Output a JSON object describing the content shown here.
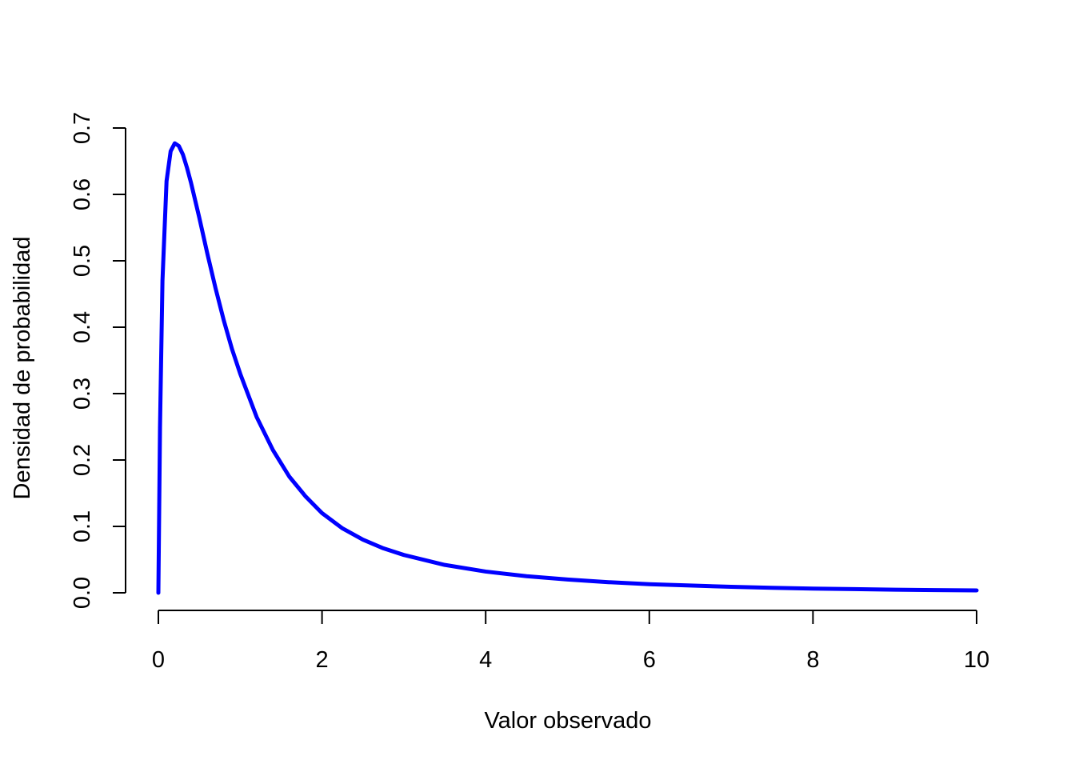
{
  "chart_data": {
    "type": "line",
    "title": "",
    "xlabel": "Valor observado",
    "ylabel": "Densidad de probabilidad",
    "xlim": [
      0,
      10
    ],
    "ylim": [
      0,
      0.7
    ],
    "x_ticks": [
      0,
      2,
      4,
      6,
      8,
      10
    ],
    "x_tick_labels": [
      "0",
      "2",
      "4",
      "6",
      "8",
      "10"
    ],
    "y_ticks": [
      0,
      0.1,
      0.2,
      0.3,
      0.4,
      0.5,
      0.6,
      0.7
    ],
    "y_tick_labels": [
      "0.0",
      "0.1",
      "0.2",
      "0.3",
      "0.4",
      "0.5",
      "0.6",
      "0.7"
    ],
    "grid": false,
    "legend": "none",
    "series": [
      {
        "color": "#0000ff",
        "x": [
          0,
          0.02,
          0.05,
          0.1,
          0.15,
          0.2,
          0.25,
          0.3,
          0.35,
          0.4,
          0.5,
          0.6,
          0.7,
          0.8,
          0.9,
          1.0,
          1.2,
          1.4,
          1.6,
          1.8,
          2.0,
          2.25,
          2.5,
          2.75,
          3.0,
          3.5,
          4.0,
          4.5,
          5.0,
          5.5,
          6.0,
          6.5,
          7.0,
          7.5,
          8.0,
          8.5,
          9.0,
          9.5,
          10.0
        ],
        "y": [
          0,
          0.25,
          0.47,
          0.62,
          0.665,
          0.677,
          0.673,
          0.66,
          0.64,
          0.617,
          0.565,
          0.51,
          0.458,
          0.41,
          0.367,
          0.33,
          0.265,
          0.215,
          0.175,
          0.145,
          0.12,
          0.097,
          0.08,
          0.067,
          0.057,
          0.042,
          0.032,
          0.025,
          0.02,
          0.016,
          0.013,
          0.011,
          0.009,
          0.0075,
          0.0064,
          0.0055,
          0.0047,
          0.0041,
          0.0036
        ]
      }
    ]
  }
}
